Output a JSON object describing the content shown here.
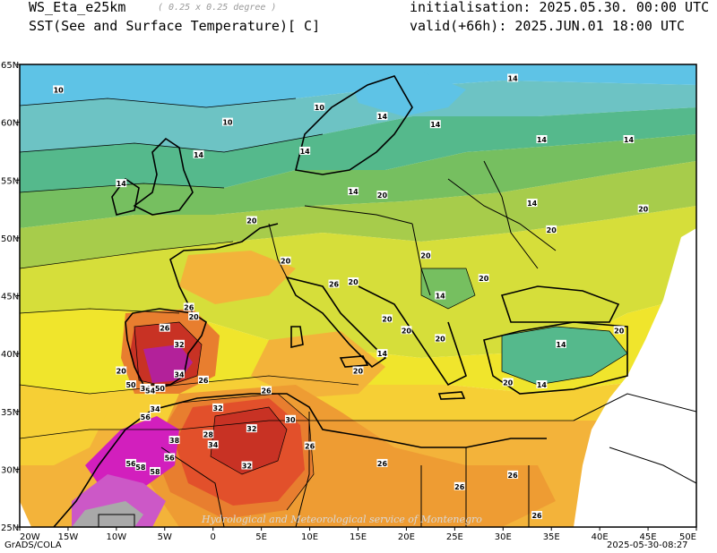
{
  "header": {
    "model": "WS_Eta_e25km",
    "resolution": "( 0.25 x 0.25 degree )",
    "field": "SST(See and Surface Temperature)[ C]",
    "init": "initialisation: 2025.05.30. 00:00 UTC",
    "valid": "valid(+66h): 2025.JUN.01 18:00 UTC"
  },
  "axes": {
    "x_ticks": [
      "20W",
      "15W",
      "10W",
      "5W",
      "0",
      "5E",
      "10E",
      "15E",
      "20E",
      "25E",
      "30E",
      "35E",
      "40E",
      "45E",
      "50E"
    ],
    "y_ticks": [
      "65N",
      "60N",
      "55N",
      "50N",
      "45N",
      "40N",
      "35N",
      "30N",
      "25N"
    ]
  },
  "contour_labels": [
    {
      "t": "10",
      "lon": -16.0,
      "lat": 62.8
    },
    {
      "t": "10",
      "lon": 1.5,
      "lat": 60.0
    },
    {
      "t": "10",
      "lon": 11.0,
      "lat": 61.3
    },
    {
      "t": "14",
      "lon": -1.5,
      "lat": 57.2
    },
    {
      "t": "14",
      "lon": -9.5,
      "lat": 54.7
    },
    {
      "t": "14",
      "lon": 9.5,
      "lat": 57.5
    },
    {
      "t": "14",
      "lon": 17.5,
      "lat": 60.5
    },
    {
      "t": "14",
      "lon": 14.5,
      "lat": 54.0
    },
    {
      "t": "14",
      "lon": 23.0,
      "lat": 59.8
    },
    {
      "t": "14",
      "lon": 31.0,
      "lat": 63.8
    },
    {
      "t": "14",
      "lon": 34.0,
      "lat": 58.5
    },
    {
      "t": "14",
      "lon": 43.0,
      "lat": 58.5
    },
    {
      "t": "14",
      "lon": 33.0,
      "lat": 53.0
    },
    {
      "t": "14",
      "lon": 23.5,
      "lat": 45.0
    },
    {
      "t": "14",
      "lon": 17.5,
      "lat": 40.0
    },
    {
      "t": "14",
      "lon": 36.0,
      "lat": 40.8
    },
    {
      "t": "14",
      "lon": 34.0,
      "lat": 37.3
    },
    {
      "t": "20",
      "lon": 17.5,
      "lat": 53.7
    },
    {
      "t": "20",
      "lon": 4.0,
      "lat": 51.5
    },
    {
      "t": "20",
      "lon": 7.5,
      "lat": 48.0
    },
    {
      "t": "20",
      "lon": 14.5,
      "lat": 46.2
    },
    {
      "t": "20",
      "lon": 18.0,
      "lat": 43.0
    },
    {
      "t": "20",
      "lon": 20.0,
      "lat": 42.0
    },
    {
      "t": "20",
      "lon": 23.5,
      "lat": 41.3
    },
    {
      "t": "20",
      "lon": 22.0,
      "lat": 48.5
    },
    {
      "t": "20",
      "lon": 28.0,
      "lat": 46.5
    },
    {
      "t": "20",
      "lon": 35.0,
      "lat": 50.7
    },
    {
      "t": "20",
      "lon": 44.5,
      "lat": 52.5
    },
    {
      "t": "20",
      "lon": 42.0,
      "lat": 42.0
    },
    {
      "t": "20",
      "lon": 15.0,
      "lat": 38.5
    },
    {
      "t": "20",
      "lon": 30.5,
      "lat": 37.5
    },
    {
      "t": "20",
      "lon": -2.0,
      "lat": 43.2
    },
    {
      "t": "20",
      "lon": -9.5,
      "lat": 38.5
    },
    {
      "t": "26",
      "lon": -2.5,
      "lat": 44.0
    },
    {
      "t": "26",
      "lon": 12.5,
      "lat": 46.0
    },
    {
      "t": "26",
      "lon": -5.0,
      "lat": 42.2
    },
    {
      "t": "26",
      "lon": -1.0,
      "lat": 37.7
    },
    {
      "t": "26",
      "lon": 5.5,
      "lat": 36.8
    },
    {
      "t": "26",
      "lon": 10.0,
      "lat": 32.0
    },
    {
      "t": "26",
      "lon": 17.5,
      "lat": 30.5
    },
    {
      "t": "26",
      "lon": 25.5,
      "lat": 28.5
    },
    {
      "t": "26",
      "lon": 31.0,
      "lat": 29.5
    },
    {
      "t": "26",
      "lon": 33.5,
      "lat": 26.0
    },
    {
      "t": "32",
      "lon": -3.5,
      "lat": 40.8
    },
    {
      "t": "32",
      "lon": 0.5,
      "lat": 35.3
    },
    {
      "t": "32",
      "lon": 4.0,
      "lat": 33.5
    },
    {
      "t": "32",
      "lon": 3.5,
      "lat": 30.3
    },
    {
      "t": "30",
      "lon": 8.0,
      "lat": 34.3
    },
    {
      "t": "34",
      "lon": -3.5,
      "lat": 38.2
    },
    {
      "t": "34",
      "lon": -7.0,
      "lat": 37.0
    },
    {
      "t": "34",
      "lon": -6.0,
      "lat": 35.2
    },
    {
      "t": "34",
      "lon": 0.0,
      "lat": 32.1
    },
    {
      "t": "50",
      "lon": -8.5,
      "lat": 37.3
    },
    {
      "t": "50",
      "lon": -5.5,
      "lat": 37.0
    },
    {
      "t": "54",
      "lon": -6.5,
      "lat": 36.8
    },
    {
      "t": "56",
      "lon": -7.0,
      "lat": 34.5
    },
    {
      "t": "56",
      "lon": -4.5,
      "lat": 31.0
    },
    {
      "t": "56",
      "lon": -8.5,
      "lat": 30.5
    },
    {
      "t": "58",
      "lon": -7.5,
      "lat": 30.2
    },
    {
      "t": "58",
      "lon": -6.0,
      "lat": 29.8
    },
    {
      "t": "38",
      "lon": -4.0,
      "lat": 32.5
    },
    {
      "t": "28",
      "lon": -0.5,
      "lat": 33.0
    }
  ],
  "colors": {
    "c6": "#29a9e0",
    "c10": "#5ec3e6",
    "c12": "#6dc3c4",
    "c14": "#55b98c",
    "c16": "#76bf60",
    "c18": "#a7cc4b",
    "c20": "#d6de3a",
    "c22": "#f0e52c",
    "c24": "#f6cf35",
    "c26": "#f3b33a",
    "c28": "#ee9c33",
    "c30": "#e87e2f",
    "c32": "#e2502b",
    "c34": "#c83224",
    "c36": "#b02c2c",
    "c40": "#a02a70",
    "c44": "#b3219a",
    "c50": "#d21fbd",
    "c54": "#cc58c7",
    "c58": "#c78fcb",
    "c62": "#a9a9a9"
  },
  "footer": {
    "left": "GrADS/COLA",
    "right": "2025-05-30-08:27"
  },
  "watermark": "Hydrological and Meteorological service of Montenegro"
}
